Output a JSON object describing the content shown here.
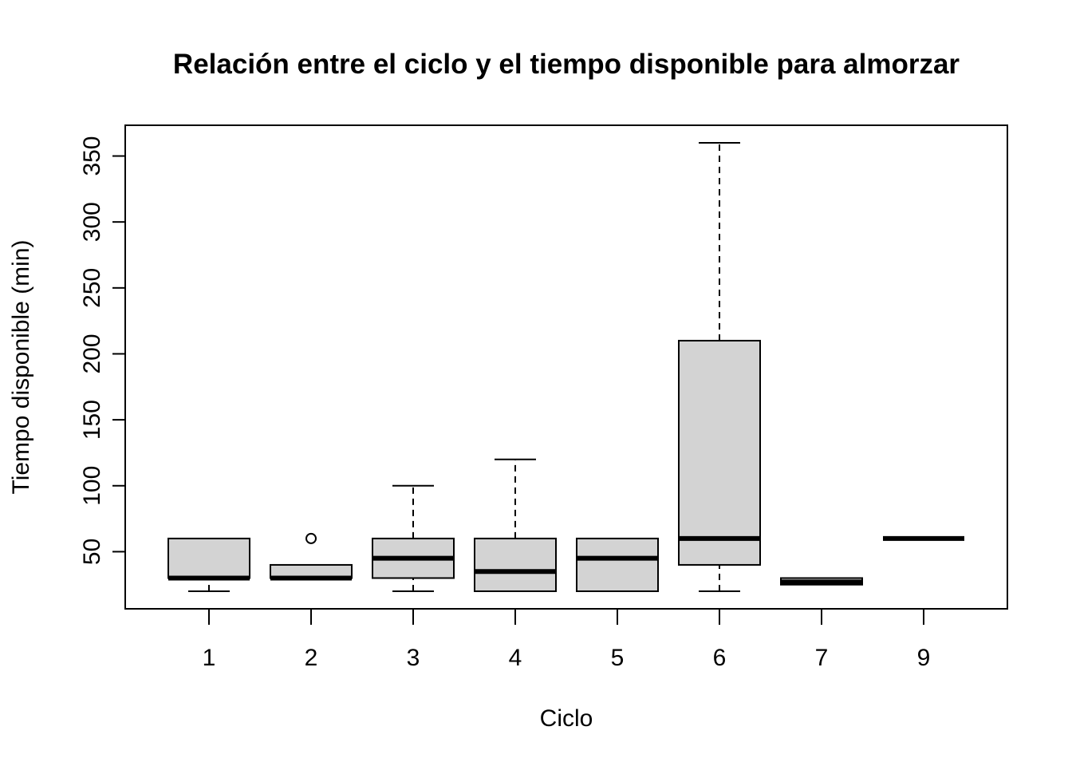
{
  "chart_data": {
    "type": "boxplot",
    "title": "Relación entre el ciclo y el tiempo disponible para almorzar",
    "xlabel": "Ciclo",
    "ylabel": "Tiempo disponible (min)",
    "ylim": [
      20,
      360
    ],
    "yticks": [
      "50",
      "100",
      "150",
      "200",
      "250",
      "300",
      "350"
    ],
    "grid": false,
    "box_fill": "#d3d3d3",
    "categories": [
      "1",
      "2",
      "3",
      "4",
      "5",
      "6",
      "7",
      "9"
    ],
    "boxes": [
      {
        "category": "1",
        "min": 20,
        "q1": 30,
        "median": 30,
        "q3": 60,
        "max": 60,
        "outliers": []
      },
      {
        "category": "2",
        "min": 30,
        "q1": 30,
        "median": 30,
        "q3": 40,
        "max": 40,
        "outliers": [
          60
        ]
      },
      {
        "category": "3",
        "min": 20,
        "q1": 30,
        "median": 45,
        "q3": 60,
        "max": 100,
        "outliers": []
      },
      {
        "category": "4",
        "min": 20,
        "q1": 20,
        "median": 35,
        "q3": 60,
        "max": 120,
        "outliers": []
      },
      {
        "category": "5",
        "min": 20,
        "q1": 20,
        "median": 45,
        "q3": 60,
        "max": 60,
        "outliers": []
      },
      {
        "category": "6",
        "min": 20,
        "q1": 40,
        "median": 60,
        "q3": 210,
        "max": 360,
        "outliers": []
      },
      {
        "category": "7",
        "min": 25,
        "q1": 25,
        "median": 27,
        "q3": 30,
        "max": 30,
        "outliers": []
      },
      {
        "category": "9",
        "min": 60,
        "q1": 60,
        "median": 60,
        "q3": 60,
        "max": 60,
        "outliers": []
      }
    ]
  }
}
